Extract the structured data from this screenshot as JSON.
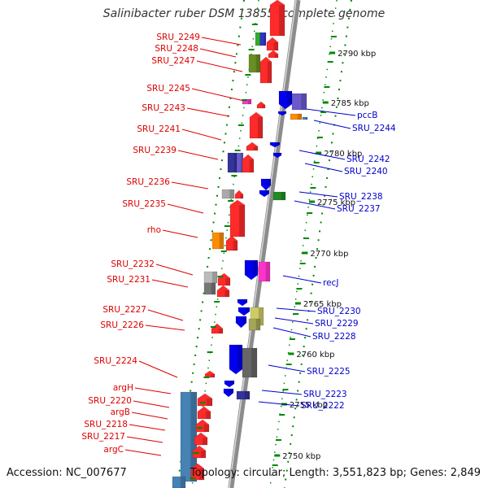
{
  "title": "Salinibacter ruber DSM 13855, complete genome",
  "accession": "Accession: NC_007677",
  "summary": "Topology: circular; Length: 3,551,823 bp; Genes: 2,849",
  "colors": {
    "forward_strand_label": "#dd0000",
    "reverse_strand_label": "#0000cc",
    "backbone": "#8c8c8c",
    "tick_marks": "#008800"
  },
  "scale_labels": [
    "2790 kbp",
    "2785 kbp",
    "2780 kbp",
    "2775 kbp",
    "2770 kbp",
    "2765 kbp",
    "2760 kbp",
    "2755 kbp",
    "2750 kbp"
  ],
  "forward_genes": [
    "SRU_2249",
    "SRU_2248",
    "SRU_2247",
    "SRU_2245",
    "SRU_2243",
    "SRU_2241",
    "SRU_2239",
    "SRU_2236",
    "SRU_2235",
    "rho",
    "SRU_2232",
    "SRU_2231",
    "SRU_2227",
    "SRU_2226",
    "SRU_2224",
    "argH",
    "SRU_2220",
    "argB",
    "SRU_2218",
    "SRU_2217",
    "argC"
  ],
  "reverse_genes": [
    "pccB",
    "SRU_2244",
    "SRU_2242",
    "SRU_2240",
    "SRU_2238",
    "SRU_2237",
    "recJ",
    "SRU_2230",
    "SRU_2229",
    "SRU_2228",
    "SRU_2225",
    "SRU_2223",
    "SRU_2222"
  ]
}
